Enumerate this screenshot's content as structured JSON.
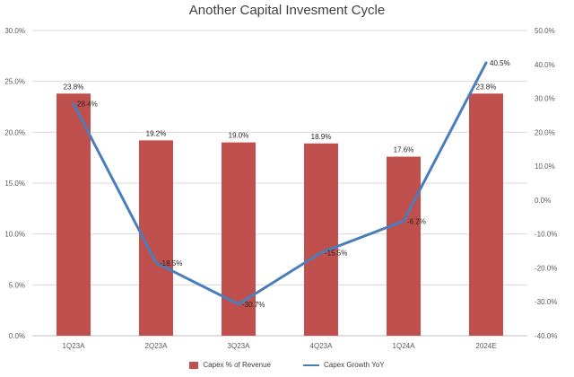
{
  "title": "Another Capital Invesment Cycle",
  "colors": {
    "bar": "#C0504D",
    "line": "#4A7EBB",
    "grid": "#D9D9D9",
    "axis": "#BFBFBF"
  },
  "chart_data": {
    "type": "bar",
    "title": "Another Capital Invesment Cycle",
    "categories": [
      "1Q23A",
      "2Q23A",
      "3Q23A",
      "4Q23A",
      "1Q24A",
      "2024E"
    ],
    "series": [
      {
        "name": "Capex % of Revenue",
        "type": "bar",
        "axis": "left",
        "values": [
          23.8,
          19.2,
          19.0,
          18.9,
          17.6,
          23.8
        ],
        "labels": [
          "23.8%",
          "19.2%",
          "19.0%",
          "18.9%",
          "17.6%",
          "23.8%"
        ]
      },
      {
        "name": "Capex Growth YoY",
        "type": "line",
        "axis": "right",
        "values": [
          28.4,
          -18.5,
          -30.7,
          -15.5,
          -6.2,
          40.5
        ],
        "labels": [
          "28.4%",
          "-18.5%",
          "-30.7%",
          "-15.5%",
          "-6.2%",
          "40.5%"
        ]
      }
    ],
    "y_left": {
      "ylim": [
        0,
        30
      ],
      "ticks": [
        "0.0%",
        "5.0%",
        "10.0%",
        "15.0%",
        "20.0%",
        "25.0%",
        "30.0%"
      ]
    },
    "y_right": {
      "ylim": [
        -40,
        50
      ],
      "ticks": [
        "-40.0%",
        "-30.0%",
        "-20.0%",
        "-10.0%",
        "0.0%",
        "10.0%",
        "20.0%",
        "30.0%",
        "40.0%",
        "50.0%"
      ]
    },
    "grid": true,
    "legend": "bottom"
  }
}
